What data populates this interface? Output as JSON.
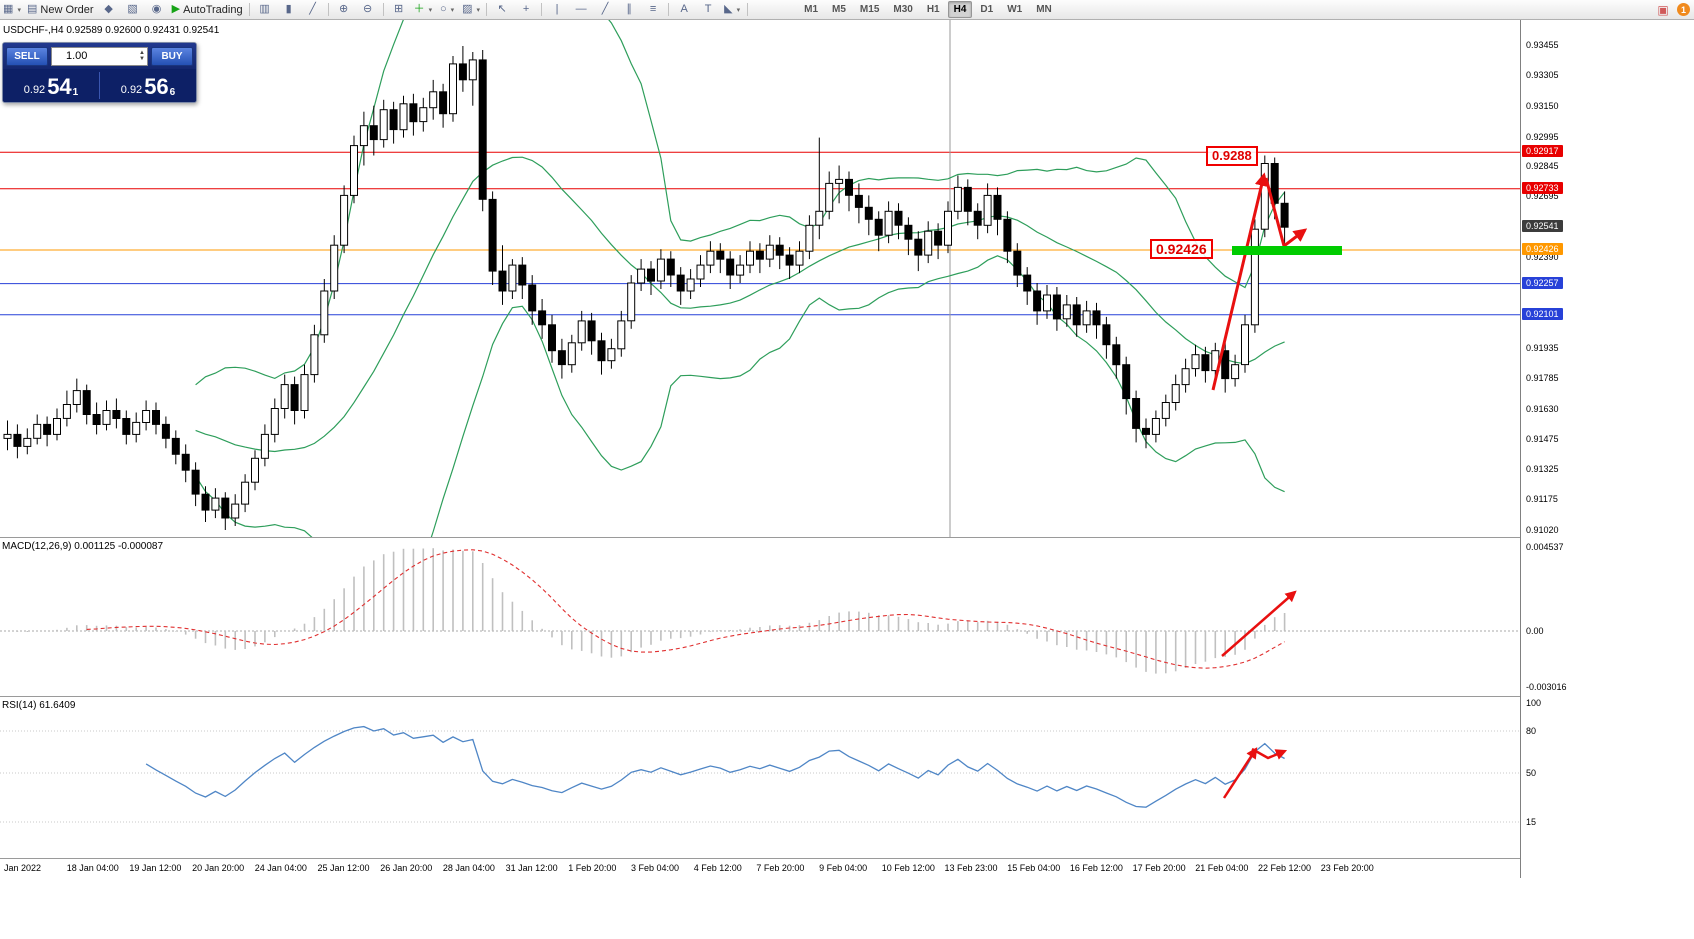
{
  "toolbar": {
    "items": [
      {
        "name": "new-chart-icon",
        "glyph": "▦",
        "dropdown": true
      },
      {
        "name": "new-order-button",
        "glyph": "▤",
        "label": "New Order"
      },
      {
        "name": "metaeditor-icon",
        "glyph": "◆"
      },
      {
        "name": "profiles-icon",
        "glyph": "▧"
      },
      {
        "name": "record-icon",
        "glyph": "◉"
      },
      {
        "name": "autotrading-button",
        "glyph": "▶",
        "label": "AutoTrading",
        "accent": "#17a317"
      },
      {
        "sep": true
      },
      {
        "name": "bar-chart-icon",
        "glyph": "▥"
      },
      {
        "name": "candlestick-chart-icon",
        "glyph": "▮"
      },
      {
        "name": "line-chart-icon",
        "glyph": "╱"
      },
      {
        "sep": true
      },
      {
        "name": "zoom-in-icon",
        "glyph": "⊕"
      },
      {
        "name": "zoom-out-icon",
        "glyph": "⊖"
      },
      {
        "sep": true
      },
      {
        "name": "tile-windows-icon",
        "glyph": "⊞"
      },
      {
        "name": "indicators-icon",
        "glyph": "＋",
        "accent": "#17a317",
        "dropdown": true
      },
      {
        "name": "periods-icon",
        "glyph": "○",
        "dropdown": true
      },
      {
        "name": "templates-icon",
        "glyph": "▨",
        "dropdown": true
      },
      {
        "sep": true
      },
      {
        "name": "cursor-icon",
        "glyph": "↖"
      },
      {
        "name": "crosshair-icon",
        "glyph": "+"
      },
      {
        "sep": true
      },
      {
        "name": "vertical-line-icon",
        "glyph": "|"
      },
      {
        "name": "horizontal-line-icon",
        "glyph": "—"
      },
      {
        "name": "trendline-icon",
        "glyph": "╱"
      },
      {
        "name": "channel-icon",
        "glyph": "∥"
      },
      {
        "name": "fibonacci-icon",
        "glyph": "≡"
      },
      {
        "sep": true
      },
      {
        "name": "text-icon",
        "glyph": "A"
      },
      {
        "name": "text-label-icon",
        "glyph": "T"
      },
      {
        "name": "arrows-icon",
        "glyph": "◣",
        "dropdown": true
      },
      {
        "sep": true
      }
    ],
    "timeframes": [
      "M1",
      "M5",
      "M15",
      "M30",
      "H1",
      "H4",
      "D1",
      "W1",
      "MN"
    ],
    "active_timeframe": "H4",
    "alert_glyph": "▣",
    "badge": "1"
  },
  "chart": {
    "title_line": "USDCHF-,H4  0.92589 0.92600 0.92431 0.92541"
  },
  "trade_panel": {
    "sell_label": "SELL",
    "buy_label": "BUY",
    "volume": "1.00",
    "sell_price_small": "0.92",
    "sell_price_big": "54",
    "sell_price_sup": "1",
    "buy_price_small": "0.92",
    "buy_price_big": "56",
    "buy_price_sup": "6"
  },
  "annotations": {
    "high_label": "0.9288",
    "pivot_label": "0.92426"
  },
  "indicators": {
    "macd": {
      "label": "MACD(12,26,9) 0.001125 -0.000087",
      "axis": [
        "0.004537",
        "0.00",
        "-0.003016"
      ]
    },
    "rsi": {
      "label": "RSI(14) 61.6409",
      "axis": [
        "100",
        "80",
        "50",
        "15"
      ]
    }
  },
  "price_axis": {
    "ticks": [
      "0.93455",
      "0.93305",
      "0.93150",
      "0.92995",
      "0.92845",
      "0.92695",
      "0.92390",
      "0.91935",
      "0.91785",
      "0.91630",
      "0.91475",
      "0.91325",
      "0.91175",
      "0.91020"
    ],
    "tags": [
      {
        "value": "0.92917",
        "color": "#e80000"
      },
      {
        "value": "0.92733",
        "color": "#e80000"
      },
      {
        "value": "0.92541",
        "color": "#3c3c3c"
      },
      {
        "value": "0.92426",
        "color": "#ff9800"
      },
      {
        "value": "0.92257",
        "color": "#2741d8"
      },
      {
        "value": "0.92101",
        "color": "#2741d8"
      }
    ]
  },
  "time_axis": {
    "labels": [
      "Jan 2022",
      "18 Jan 04:00",
      "19 Jan 12:00",
      "20 Jan 20:00",
      "24 Jan 04:00",
      "25 Jan 12:00",
      "26 Jan 20:00",
      "28 Jan 04:00",
      "31 Jan 12:00",
      "1 Feb 20:00",
      "3 Feb 04:00",
      "4 Feb 12:00",
      "7 Feb 20:00",
      "9 Feb 04:00",
      "10 Feb 12:00",
      "13 Feb 23:00",
      "15 Feb 04:00",
      "16 Feb 12:00",
      "17 Feb 20:00",
      "21 Feb 04:00",
      "22 Feb 12:00",
      "23 Feb 20:00"
    ]
  },
  "colors": {
    "bollinger": "#2e9e5b",
    "rsi": "#4f86c6",
    "macd_signal": "#e03030",
    "macd_hist": "#c0c0c0",
    "arrow": "#e81010",
    "highlight": "#00cc00",
    "level_red": "#e80000",
    "level_orange": "#ff9800",
    "level_blue": "#2741d8",
    "candle_up": "#ffffff",
    "candle_down": "#000000"
  },
  "chart_data": {
    "type": "candlestick",
    "symbol": "USDCHF",
    "timeframe": "H4",
    "ohlc_current": {
      "open": 0.92589,
      "high": 0.926,
      "low": 0.92431,
      "close": 0.92541
    },
    "bid": 0.92541,
    "ask": 0.92566,
    "bollinger": {
      "period": 20,
      "deviation": 2
    },
    "macd": {
      "fast": 12,
      "slow": 26,
      "signal": 9,
      "value": 0.001125,
      "signal_value": -8.7e-05
    },
    "rsi": {
      "period": 14,
      "value": 61.6409
    },
    "levels": [
      {
        "price": 0.92917,
        "color": "#e80000"
      },
      {
        "price": 0.92733,
        "color": "#e80000"
      },
      {
        "price": 0.92426,
        "color": "#ff9800"
      },
      {
        "price": 0.92257,
        "color": "#2741d8"
      },
      {
        "price": 0.92101,
        "color": "#2741d8"
      }
    ],
    "candles": [
      [
        0.9148,
        0.9157,
        0.9142,
        0.915
      ],
      [
        0.915,
        0.9155,
        0.9138,
        0.9144
      ],
      [
        0.9144,
        0.9153,
        0.914,
        0.9148
      ],
      [
        0.9148,
        0.916,
        0.9145,
        0.9155
      ],
      [
        0.9155,
        0.9159,
        0.9144,
        0.915
      ],
      [
        0.915,
        0.9163,
        0.9147,
        0.9158
      ],
      [
        0.9158,
        0.9172,
        0.9154,
        0.9165
      ],
      [
        0.9165,
        0.9178,
        0.9161,
        0.9172
      ],
      [
        0.9172,
        0.9175,
        0.9155,
        0.916
      ],
      [
        0.916,
        0.9166,
        0.915,
        0.9155
      ],
      [
        0.9155,
        0.9167,
        0.9152,
        0.9162
      ],
      [
        0.9162,
        0.9168,
        0.9153,
        0.9158
      ],
      [
        0.9158,
        0.9162,
        0.9145,
        0.915
      ],
      [
        0.915,
        0.9161,
        0.9146,
        0.9156
      ],
      [
        0.9156,
        0.9167,
        0.9152,
        0.9162
      ],
      [
        0.9162,
        0.9166,
        0.915,
        0.9155
      ],
      [
        0.9155,
        0.9159,
        0.9143,
        0.9148
      ],
      [
        0.9148,
        0.9152,
        0.9135,
        0.914
      ],
      [
        0.914,
        0.9145,
        0.9126,
        0.9132
      ],
      [
        0.9132,
        0.9136,
        0.9114,
        0.912
      ],
      [
        0.912,
        0.9124,
        0.9106,
        0.9112
      ],
      [
        0.9112,
        0.9123,
        0.9108,
        0.9118
      ],
      [
        0.9118,
        0.9121,
        0.9102,
        0.9108
      ],
      [
        0.9108,
        0.912,
        0.9104,
        0.9115
      ],
      [
        0.9115,
        0.913,
        0.9111,
        0.9126
      ],
      [
        0.9126,
        0.9142,
        0.9122,
        0.9138
      ],
      [
        0.9138,
        0.9155,
        0.9134,
        0.915
      ],
      [
        0.915,
        0.9168,
        0.9146,
        0.9163
      ],
      [
        0.9163,
        0.918,
        0.9158,
        0.9175
      ],
      [
        0.9175,
        0.9179,
        0.9155,
        0.9162
      ],
      [
        0.9162,
        0.9185,
        0.9158,
        0.918
      ],
      [
        0.918,
        0.9205,
        0.9176,
        0.92
      ],
      [
        0.92,
        0.9228,
        0.9196,
        0.9222
      ],
      [
        0.9222,
        0.925,
        0.9218,
        0.9245
      ],
      [
        0.9245,
        0.9275,
        0.9241,
        0.927
      ],
      [
        0.927,
        0.93,
        0.9266,
        0.9295
      ],
      [
        0.9295,
        0.9312,
        0.9285,
        0.9305
      ],
      [
        0.9305,
        0.9315,
        0.929,
        0.9298
      ],
      [
        0.9298,
        0.9318,
        0.9294,
        0.9313
      ],
      [
        0.9313,
        0.9317,
        0.9296,
        0.9303
      ],
      [
        0.9303,
        0.932,
        0.9299,
        0.9316
      ],
      [
        0.9316,
        0.9321,
        0.93,
        0.9307
      ],
      [
        0.9307,
        0.9319,
        0.9302,
        0.9314
      ],
      [
        0.9314,
        0.9328,
        0.9308,
        0.9322
      ],
      [
        0.9322,
        0.9326,
        0.9304,
        0.9311
      ],
      [
        0.9311,
        0.934,
        0.9307,
        0.9336
      ],
      [
        0.9336,
        0.9345,
        0.9322,
        0.9328
      ],
      [
        0.9328,
        0.9342,
        0.9315,
        0.9338
      ],
      [
        0.9338,
        0.9343,
        0.9262,
        0.9268
      ],
      [
        0.9268,
        0.9272,
        0.9225,
        0.9232
      ],
      [
        0.9232,
        0.9245,
        0.9215,
        0.9222
      ],
      [
        0.9222,
        0.9238,
        0.9218,
        0.9235
      ],
      [
        0.9235,
        0.9239,
        0.9218,
        0.9225
      ],
      [
        0.9225,
        0.923,
        0.9205,
        0.9212
      ],
      [
        0.9212,
        0.9218,
        0.9198,
        0.9205
      ],
      [
        0.9205,
        0.921,
        0.9186,
        0.9192
      ],
      [
        0.9192,
        0.9198,
        0.9178,
        0.9185
      ],
      [
        0.9185,
        0.92,
        0.9181,
        0.9196
      ],
      [
        0.9196,
        0.9212,
        0.9192,
        0.9207
      ],
      [
        0.9207,
        0.9211,
        0.919,
        0.9197
      ],
      [
        0.9197,
        0.9201,
        0.918,
        0.9187
      ],
      [
        0.9187,
        0.9198,
        0.9183,
        0.9193
      ],
      [
        0.9193,
        0.9212,
        0.9189,
        0.9207
      ],
      [
        0.9207,
        0.923,
        0.9203,
        0.9226
      ],
      [
        0.9226,
        0.9238,
        0.9222,
        0.9233
      ],
      [
        0.9233,
        0.9237,
        0.922,
        0.9227
      ],
      [
        0.9227,
        0.9243,
        0.9223,
        0.9238
      ],
      [
        0.9238,
        0.9242,
        0.9224,
        0.923
      ],
      [
        0.923,
        0.9234,
        0.9215,
        0.9222
      ],
      [
        0.9222,
        0.9233,
        0.9218,
        0.9228
      ],
      [
        0.9228,
        0.924,
        0.9224,
        0.9235
      ],
      [
        0.9235,
        0.9247,
        0.9231,
        0.9242
      ],
      [
        0.9242,
        0.9246,
        0.9231,
        0.9238
      ],
      [
        0.9238,
        0.9242,
        0.9223,
        0.923
      ],
      [
        0.923,
        0.924,
        0.9226,
        0.9235
      ],
      [
        0.9235,
        0.9247,
        0.9231,
        0.9242
      ],
      [
        0.9242,
        0.9246,
        0.9231,
        0.9238
      ],
      [
        0.9238,
        0.925,
        0.9234,
        0.9245
      ],
      [
        0.9245,
        0.9249,
        0.9233,
        0.924
      ],
      [
        0.924,
        0.9244,
        0.9228,
        0.9235
      ],
      [
        0.9235,
        0.9247,
        0.9231,
        0.9242
      ],
      [
        0.9242,
        0.926,
        0.9238,
        0.9255
      ],
      [
        0.9255,
        0.9299,
        0.9248,
        0.9262
      ],
      [
        0.9262,
        0.9282,
        0.9258,
        0.9276
      ],
      [
        0.9276,
        0.9285,
        0.9266,
        0.9278
      ],
      [
        0.9278,
        0.9282,
        0.9262,
        0.927
      ],
      [
        0.927,
        0.9276,
        0.9256,
        0.9264
      ],
      [
        0.9264,
        0.927,
        0.925,
        0.9258
      ],
      [
        0.9258,
        0.9262,
        0.9242,
        0.925
      ],
      [
        0.925,
        0.9267,
        0.9246,
        0.9262
      ],
      [
        0.9262,
        0.9266,
        0.9248,
        0.9255
      ],
      [
        0.9255,
        0.9259,
        0.924,
        0.9248
      ],
      [
        0.9248,
        0.9252,
        0.9232,
        0.924
      ],
      [
        0.924,
        0.9257,
        0.9236,
        0.9252
      ],
      [
        0.9252,
        0.9256,
        0.9238,
        0.9245
      ],
      [
        0.9245,
        0.9267,
        0.9241,
        0.9262
      ],
      [
        0.9262,
        0.928,
        0.9258,
        0.9274
      ],
      [
        0.9274,
        0.9278,
        0.9255,
        0.9262
      ],
      [
        0.9262,
        0.9266,
        0.9248,
        0.9255
      ],
      [
        0.9255,
        0.9276,
        0.9251,
        0.927
      ],
      [
        0.927,
        0.9274,
        0.925,
        0.9258
      ],
      [
        0.9258,
        0.9262,
        0.9236,
        0.9242
      ],
      [
        0.9242,
        0.9246,
        0.9224,
        0.923
      ],
      [
        0.923,
        0.9234,
        0.9215,
        0.9222
      ],
      [
        0.9222,
        0.9226,
        0.9205,
        0.9212
      ],
      [
        0.9212,
        0.9225,
        0.9208,
        0.922
      ],
      [
        0.922,
        0.9224,
        0.9202,
        0.9208
      ],
      [
        0.9208,
        0.922,
        0.9204,
        0.9215
      ],
      [
        0.9215,
        0.9219,
        0.9199,
        0.9205
      ],
      [
        0.9205,
        0.9217,
        0.9201,
        0.9212
      ],
      [
        0.9212,
        0.9216,
        0.9198,
        0.9205
      ],
      [
        0.9205,
        0.9209,
        0.9188,
        0.9195
      ],
      [
        0.9195,
        0.9199,
        0.9178,
        0.9185
      ],
      [
        0.9185,
        0.9189,
        0.916,
        0.9168
      ],
      [
        0.9168,
        0.9172,
        0.9146,
        0.9153
      ],
      [
        0.9153,
        0.9158,
        0.9143,
        0.915
      ],
      [
        0.915,
        0.9162,
        0.9146,
        0.9158
      ],
      [
        0.9158,
        0.917,
        0.9154,
        0.9166
      ],
      [
        0.9166,
        0.918,
        0.9162,
        0.9175
      ],
      [
        0.9175,
        0.9188,
        0.9171,
        0.9183
      ],
      [
        0.9183,
        0.9195,
        0.9179,
        0.919
      ],
      [
        0.919,
        0.9194,
        0.9176,
        0.9182
      ],
      [
        0.9182,
        0.9196,
        0.9178,
        0.9192
      ],
      [
        0.9192,
        0.9196,
        0.9171,
        0.9178
      ],
      [
        0.9178,
        0.919,
        0.9174,
        0.9185
      ],
      [
        0.9185,
        0.921,
        0.9181,
        0.9205
      ],
      [
        0.9205,
        0.9258,
        0.9201,
        0.9253
      ],
      [
        0.9253,
        0.929,
        0.9249,
        0.9286
      ],
      [
        0.9286,
        0.9289,
        0.9258,
        0.9266
      ],
      [
        0.9266,
        0.9272,
        0.9242,
        0.9254
      ]
    ]
  }
}
